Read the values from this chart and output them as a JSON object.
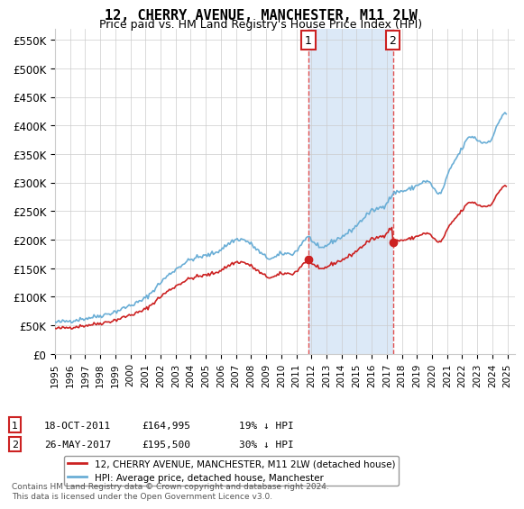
{
  "title": "12, CHERRY AVENUE, MANCHESTER, M11 2LW",
  "subtitle": "Price paid vs. HM Land Registry's House Price Index (HPI)",
  "ylabel_ticks": [
    "£0",
    "£50K",
    "£100K",
    "£150K",
    "£200K",
    "£250K",
    "£300K",
    "£350K",
    "£400K",
    "£450K",
    "£500K",
    "£550K"
  ],
  "ytick_values": [
    0,
    50000,
    100000,
    150000,
    200000,
    250000,
    300000,
    350000,
    400000,
    450000,
    500000,
    550000
  ],
  "ylim": [
    0,
    570000
  ],
  "xlim_start": 1995.0,
  "xlim_end": 2025.5,
  "legend_line1": "12, CHERRY AVENUE, MANCHESTER, M11 2LW (detached house)",
  "legend_line2": "HPI: Average price, detached house, Manchester",
  "sale1_label": "1",
  "sale1_date": "18-OCT-2011",
  "sale1_price": "£164,995",
  "sale1_info": "19% ↓ HPI",
  "sale1_x": 2011.8,
  "sale1_y": 164995,
  "sale2_label": "2",
  "sale2_date": "26-MAY-2017",
  "sale2_price": "£195,500",
  "sale2_info": "30% ↓ HPI",
  "sale2_x": 2017.4,
  "sale2_y": 195500,
  "vline1_x": 2011.8,
  "vline2_x": 2017.4,
  "highlight_color": "#dce9f7",
  "vline_color": "#e05050",
  "footnote": "Contains HM Land Registry data © Crown copyright and database right 2024.\nThis data is licensed under the Open Government Licence v3.0.",
  "hpi_color": "#6aaed6",
  "sale_color": "#cc2222",
  "background_color": "#ffffff",
  "grid_color": "#cccccc"
}
